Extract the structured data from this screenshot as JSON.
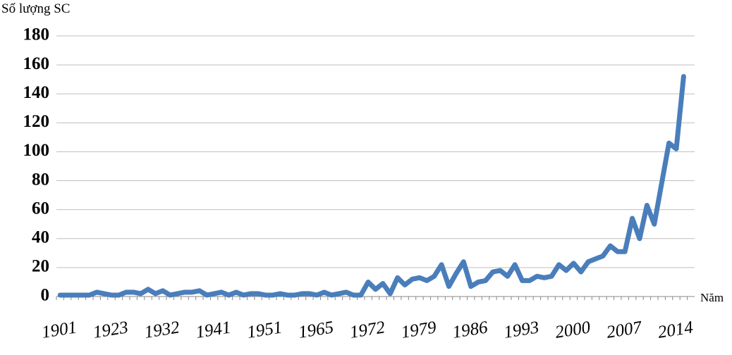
{
  "chart_data": {
    "type": "line",
    "y_label": "Số lượng SC",
    "x_label": "Năm",
    "categories": [
      "1901",
      null,
      null,
      null,
      null,
      null,
      null,
      "1923",
      null,
      null,
      null,
      null,
      null,
      null,
      "1932",
      null,
      null,
      null,
      null,
      null,
      null,
      "1941",
      null,
      null,
      null,
      null,
      null,
      null,
      "1951",
      null,
      null,
      null,
      null,
      null,
      null,
      "1965",
      null,
      null,
      null,
      null,
      null,
      null,
      "1972",
      null,
      null,
      null,
      null,
      null,
      null,
      "1979",
      null,
      null,
      null,
      null,
      null,
      null,
      "1986",
      null,
      null,
      null,
      null,
      null,
      null,
      "1993",
      null,
      null,
      null,
      null,
      null,
      null,
      "2000",
      null,
      null,
      null,
      null,
      null,
      null,
      "2007",
      null,
      null,
      null,
      null,
      null,
      null,
      "2014",
      null,
      null
    ],
    "values": [
      1,
      1,
      1,
      1,
      1,
      3,
      2,
      1,
      1,
      3,
      3,
      2,
      5,
      2,
      4,
      1,
      2,
      3,
      3,
      4,
      1,
      2,
      3,
      1,
      3,
      1,
      2,
      2,
      1,
      1,
      2,
      1,
      1,
      2,
      2,
      1,
      3,
      1,
      2,
      3,
      1,
      1,
      10,
      5,
      9,
      2,
      13,
      8,
      12,
      13,
      11,
      14,
      22,
      7,
      16,
      24,
      7,
      10,
      11,
      17,
      18,
      14,
      22,
      11,
      11,
      14,
      13,
      14,
      22,
      18,
      23,
      17,
      24,
      26,
      28,
      35,
      31,
      31,
      54,
      40,
      63,
      50,
      78,
      106,
      102,
      152,
      null
    ],
    "color": "#4a7ebb",
    "ylim": [
      0,
      180
    ],
    "yticks": [
      0,
      20,
      40,
      60,
      80,
      100,
      120,
      140,
      160,
      180
    ],
    "grid": true
  }
}
